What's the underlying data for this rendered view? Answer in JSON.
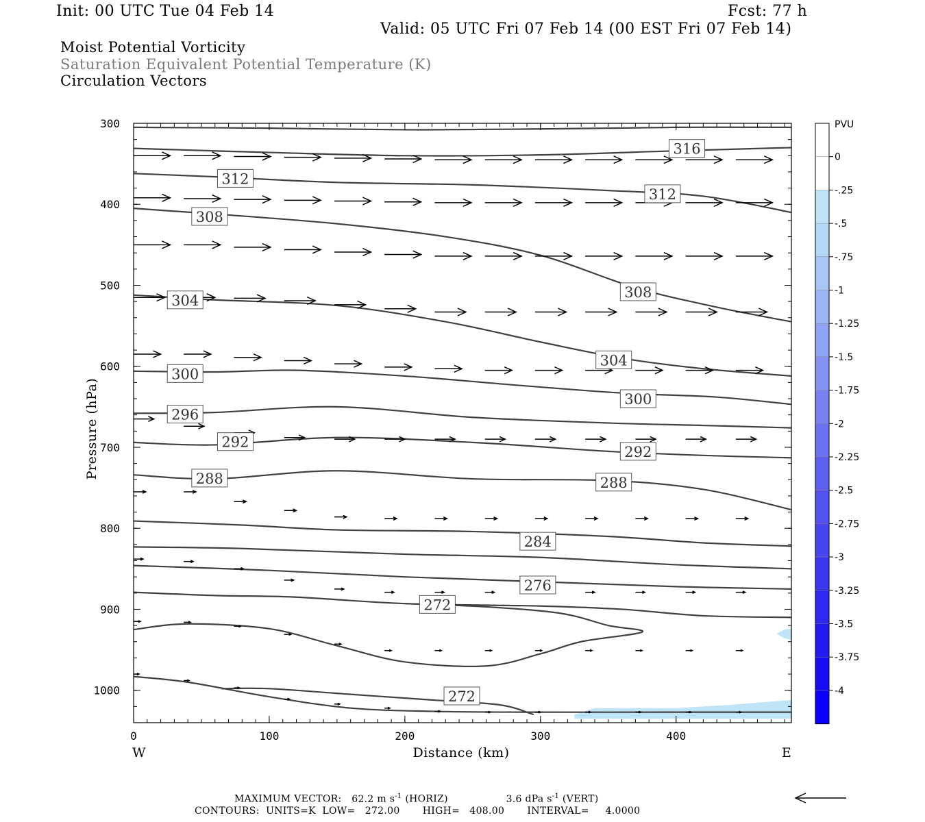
{
  "header": {
    "init": "Init: 00 UTC Tue 04 Feb 14",
    "fcst": "Fcst:   77 h",
    "valid": "Valid: 05 UTC Fri 07 Feb 14 (00 EST Fri 07 Feb 14)"
  },
  "titles": {
    "line1": "Moist Potential Vorticity",
    "line2": "Saturation Equivalent Potential Temperature (K)",
    "line3": "Circulation Vectors"
  },
  "colors": {
    "contour": "#404040",
    "shade_light": "#bfe4f8",
    "text_gray": "#7a7a7a"
  },
  "chart_data": {
    "type": "cross-section contour",
    "xlabel": "Distance (km)",
    "ylabel": "Pressure (hPa)",
    "xlim": [
      0,
      485
    ],
    "ylim": [
      300,
      1040
    ],
    "x_ticks": [
      0,
      100,
      200,
      300,
      400
    ],
    "y_ticks": [
      300,
      400,
      500,
      600,
      700,
      800,
      900,
      1000
    ],
    "west_label": "W",
    "east_label": "E",
    "contour_units": "K",
    "contour_lines": [
      {
        "pts": [
          [
            0,
            305
          ],
          [
            100,
            306
          ],
          [
            200,
            308
          ],
          [
            300,
            307
          ],
          [
            400,
            305
          ],
          [
            485,
            305
          ]
        ]
      },
      {
        "pts": [
          [
            0,
            331
          ],
          [
            100,
            336
          ],
          [
            200,
            340
          ],
          [
            300,
            339
          ],
          [
            400,
            334
          ],
          [
            485,
            330
          ]
        ],
        "label": "316",
        "label_at": [
          408,
          331
        ]
      },
      {
        "pts": [
          [
            0,
            362
          ],
          [
            60,
            366
          ],
          [
            150,
            373
          ],
          [
            250,
            376
          ],
          [
            350,
            383
          ],
          [
            420,
            390
          ],
          [
            485,
            410
          ]
        ],
        "label": "312",
        "label_at": [
          75,
          368
        ],
        "label2_at": [
          390,
          387
        ]
      },
      {
        "pts": [
          [
            0,
            405
          ],
          [
            60,
            412
          ],
          [
            150,
            424
          ],
          [
            230,
            440
          ],
          [
            300,
            463
          ],
          [
            370,
            503
          ],
          [
            430,
            527
          ],
          [
            485,
            545
          ]
        ],
        "label": "308",
        "label_at": [
          56,
          415
        ],
        "label2_at": [
          372,
          508
        ]
      },
      {
        "pts": [
          [
            0,
            512
          ],
          [
            60,
            518
          ],
          [
            150,
            525
          ],
          [
            230,
            545
          ],
          [
            300,
            570
          ],
          [
            360,
            590
          ],
          [
            420,
            603
          ],
          [
            485,
            612
          ]
        ],
        "label": "304",
        "label_at": [
          38,
          518
        ],
        "label2_at": [
          354,
          592
        ]
      },
      {
        "pts": [
          [
            0,
            606
          ],
          [
            60,
            607
          ],
          [
            120,
            605
          ],
          [
            200,
            612
          ],
          [
            280,
            623
          ],
          [
            360,
            633
          ],
          [
            430,
            638
          ],
          [
            485,
            647
          ]
        ],
        "label": "300",
        "label_at": [
          38,
          609
        ],
        "label2_at": [
          372,
          640
        ]
      },
      {
        "pts": [
          [
            0,
            658
          ],
          [
            60,
            657
          ],
          [
            150,
            650
          ],
          [
            250,
            663
          ],
          [
            350,
            670
          ],
          [
            420,
            673
          ],
          [
            485,
            676
          ]
        ],
        "label": "296",
        "label_at": [
          38,
          659
        ]
      },
      {
        "pts": [
          [
            0,
            694
          ],
          [
            60,
            697
          ],
          [
            150,
            688
          ],
          [
            250,
            694
          ],
          [
            350,
            705
          ],
          [
            420,
            710
          ],
          [
            485,
            713
          ]
        ],
        "label": "292",
        "label_at": [
          75,
          693
        ],
        "label2_at": [
          372,
          705
        ]
      },
      {
        "pts": [
          [
            0,
            734
          ],
          [
            60,
            739
          ],
          [
            150,
            729
          ],
          [
            250,
            739
          ],
          [
            350,
            741
          ],
          [
            420,
            752
          ],
          [
            485,
            777
          ]
        ],
        "label": "288",
        "label_at": [
          56,
          738
        ],
        "label2_at": [
          354,
          743
        ]
      },
      {
        "pts": [
          [
            0,
            791
          ],
          [
            80,
            796
          ],
          [
            150,
            802
          ],
          [
            250,
            804
          ],
          [
            350,
            810
          ],
          [
            420,
            818
          ],
          [
            485,
            822
          ]
        ],
        "label": "284",
        "label_at": [
          298,
          816
        ]
      },
      {
        "pts": [
          [
            0,
            823
          ],
          [
            80,
            825
          ],
          [
            200,
            832
          ],
          [
            300,
            836
          ],
          [
            400,
            845
          ],
          [
            485,
            850
          ]
        ]
      },
      {
        "pts": [
          [
            0,
            846
          ],
          [
            100,
            852
          ],
          [
            200,
            860
          ],
          [
            300,
            866
          ],
          [
            400,
            872
          ],
          [
            485,
            875
          ]
        ],
        "label": "276",
        "label_at": [
          298,
          870
        ]
      },
      {
        "pts": [
          [
            0,
            879
          ],
          [
            60,
            883
          ],
          [
            120,
            885
          ],
          [
            200,
            893
          ],
          [
            300,
            896
          ],
          [
            360,
            900
          ],
          [
            420,
            908
          ],
          [
            485,
            910
          ]
        ]
      },
      {
        "pts": [
          [
            0,
            925
          ],
          [
            40,
            918
          ],
          [
            100,
            924
          ],
          [
            150,
            945
          ],
          [
            200,
            965
          ],
          [
            260,
            970
          ],
          [
            300,
            955
          ],
          [
            330,
            940
          ],
          [
            375,
            928
          ],
          [
            350,
            920
          ],
          [
            315,
            905
          ],
          [
            260,
            897
          ],
          [
            200,
            893
          ]
        ],
        "label": "272",
        "label_at": [
          224,
          894
        ]
      },
      {
        "pts": [
          [
            0,
            983
          ],
          [
            40,
            990
          ],
          [
            100,
            1008
          ],
          [
            160,
            1022
          ],
          [
            220,
            1026
          ],
          [
            290,
            1027
          ],
          [
            400,
            1027
          ],
          [
            485,
            1027
          ]
        ]
      },
      {
        "pts": [
          [
            65,
            998
          ],
          [
            100,
            998
          ],
          [
            160,
            1005
          ],
          [
            220,
            1012
          ],
          [
            270,
            1018
          ],
          [
            295,
            1030
          ]
        ],
        "label": "272",
        "label_at": [
          242,
          1007
        ]
      }
    ],
    "shaded_regions": [
      {
        "color": "#bfe4f8",
        "pts": [
          [
            325,
            1030
          ],
          [
            340,
            1022
          ],
          [
            400,
            1022
          ],
          [
            440,
            1018
          ],
          [
            485,
            1012
          ],
          [
            485,
            1035
          ],
          [
            325,
            1035
          ]
        ]
      },
      {
        "color": "#bfe4f8",
        "pts": [
          [
            474,
            930
          ],
          [
            480,
            925
          ],
          [
            485,
            924
          ],
          [
            485,
            938
          ],
          [
            480,
            936
          ]
        ]
      }
    ],
    "vector_rows": [
      {
        "p": 340,
        "x": [
          0,
          37,
          74,
          111,
          148,
          185,
          222,
          259,
          296,
          333,
          370,
          407,
          444
        ],
        "len": 27,
        "dp": [
          0,
          0,
          1,
          2,
          3,
          4,
          5,
          5,
          5,
          5,
          5,
          5,
          5
        ]
      },
      {
        "p": 392,
        "x": [
          0,
          37,
          74,
          111,
          148,
          185,
          222,
          259,
          296,
          333,
          370,
          407,
          444
        ],
        "len": 27,
        "dp": [
          0,
          1,
          2,
          3,
          4,
          5,
          6,
          6,
          6,
          6,
          6,
          6,
          6
        ]
      },
      {
        "p": 450,
        "x": [
          0,
          37,
          74,
          111,
          148,
          185,
          222,
          259,
          296,
          333,
          370,
          407,
          444
        ],
        "len": 27,
        "dp": [
          0,
          0,
          3,
          6,
          9,
          12,
          14,
          14,
          14,
          14,
          14,
          14,
          14
        ]
      },
      {
        "p": 515,
        "x": [
          0,
          37,
          74,
          111,
          148,
          185,
          222,
          259,
          296,
          333,
          370,
          407,
          444
        ],
        "len": 23,
        "dp": [
          0,
          0,
          1,
          4,
          9,
          14,
          18,
          18,
          18,
          18,
          18,
          18,
          18
        ]
      },
      {
        "p": 585,
        "x": [
          0,
          37,
          74,
          111,
          148,
          185,
          222,
          259,
          296,
          333,
          370,
          407,
          444
        ],
        "len": 20,
        "dp": [
          0,
          0,
          4,
          8,
          12,
          16,
          18,
          20,
          20,
          20,
          20,
          20,
          20
        ]
      },
      {
        "p": 665,
        "x": [
          0,
          37,
          74,
          111,
          148,
          185,
          222,
          259,
          296,
          333,
          370,
          407,
          444
        ],
        "len": 15,
        "dp": [
          0,
          9,
          17,
          23,
          25,
          25,
          25,
          25,
          25,
          25,
          25,
          25,
          25
        ]
      },
      {
        "p": 755,
        "x": [
          0,
          37,
          74,
          111,
          148,
          185,
          222,
          259,
          296,
          333,
          370,
          407,
          444
        ],
        "len": 9,
        "dp": [
          0,
          0,
          12,
          23,
          31,
          33,
          33,
          33,
          33,
          33,
          33,
          33,
          33
        ]
      },
      {
        "p": 838,
        "x": [
          0,
          37,
          74,
          111,
          148,
          185,
          222,
          259,
          296,
          333,
          370,
          407,
          444
        ],
        "len": 7,
        "dp": [
          0,
          3,
          12,
          26,
          37,
          41,
          41,
          41,
          41,
          41,
          41,
          41,
          41
        ]
      },
      {
        "p": 915,
        "x": [
          0,
          37,
          74,
          111,
          148,
          185,
          222,
          259,
          296,
          333,
          370,
          407,
          444
        ],
        "len": 5,
        "dp": [
          0,
          1,
          6,
          16,
          28,
          36,
          36,
          36,
          36,
          36,
          36,
          36,
          36
        ]
      },
      {
        "p": 980,
        "x": [
          0,
          37,
          74,
          111,
          148,
          185,
          222,
          259,
          296,
          333,
          370,
          407,
          444
        ],
        "len": 4,
        "dp": [
          0,
          8,
          17,
          31,
          37,
          42,
          46,
          47,
          47,
          47,
          47,
          47,
          47
        ]
      }
    ],
    "colorbar": {
      "title": "PVU",
      "labels": [
        "0",
        "-.25",
        "-.5",
        "-.75",
        "-1",
        "-1.25",
        "-1.5",
        "-1.75",
        "-2",
        "-2.25",
        "-2.5",
        "-2.75",
        "-3",
        "-3.25",
        "-3.5",
        "-3.75",
        "-4"
      ],
      "colors": [
        "#ffffff",
        "#ffffff",
        "#bfe4f8",
        "#b3d7f7",
        "#a7c6f6",
        "#9bb5f5",
        "#8fa4f4",
        "#8393f3",
        "#7782f2",
        "#6b71f1",
        "#5f60f0",
        "#5352ef",
        "#4744ee",
        "#3b36ef",
        "#2f28f0",
        "#231af2",
        "#170cf5",
        "#0b00f8"
      ]
    }
  },
  "footer": {
    "max_vector_label": "MAXIMUM VECTOR:",
    "horiz_value": "62.2",
    "horiz_unit": "m s",
    "horiz_exp": "-1",
    "horiz_tag": "(HORIZ)",
    "vert_value": "3.6",
    "vert_unit": "dPa s",
    "vert_exp": "-1",
    "vert_tag": "(VERT)",
    "contours_line": "CONTOURS:  UNITS=K  LOW=   272.00       HIGH=   408.00       INTERVAL=     4.0000"
  }
}
